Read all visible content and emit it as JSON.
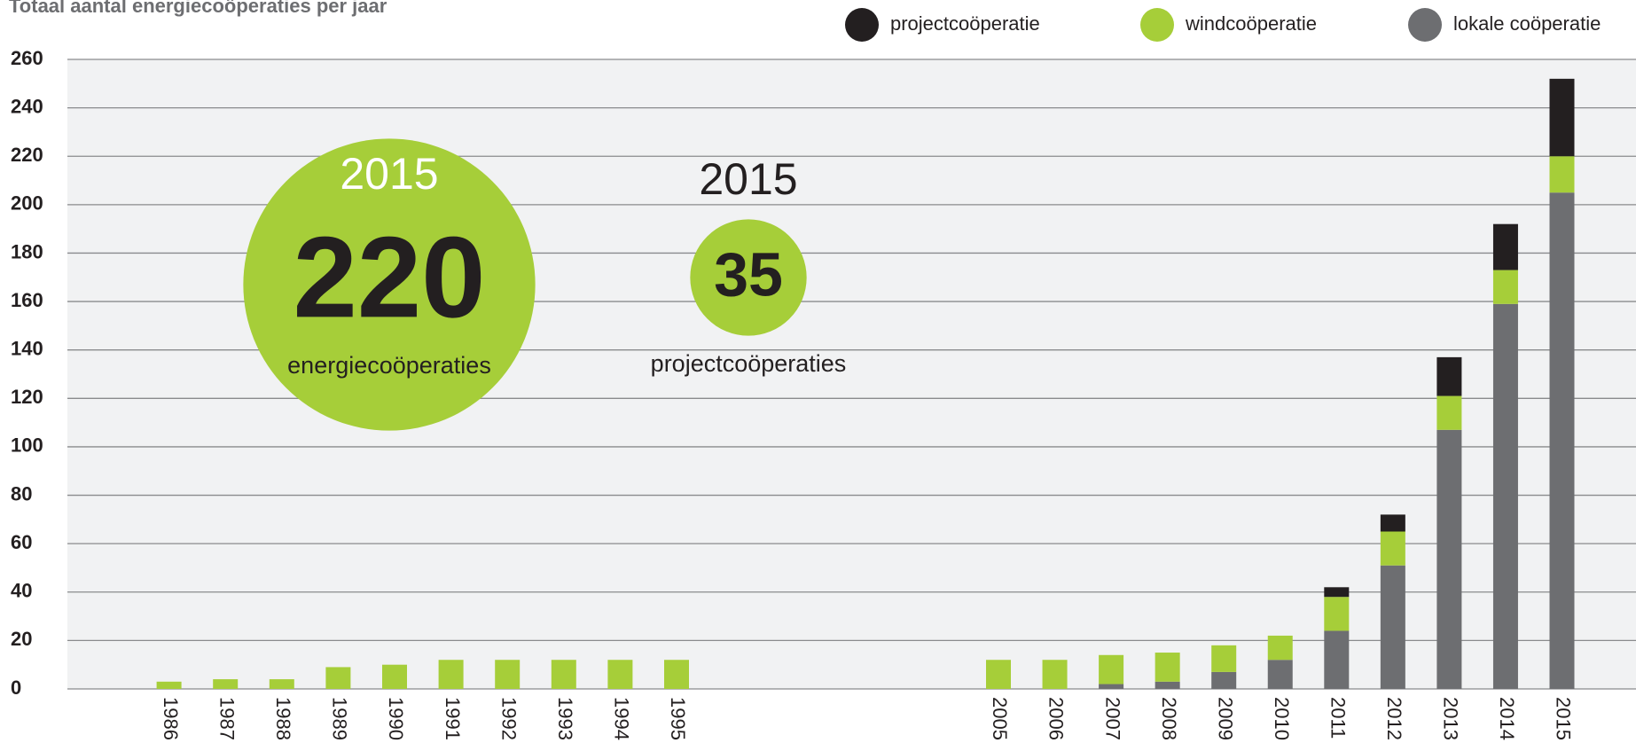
{
  "chart_data": {
    "type": "stacked-bar",
    "title": "Totaal aantal energiecoöperaties per jaar",
    "categories": [
      "1986",
      "1987",
      "1988",
      "1989",
      "1990",
      "1991",
      "1992",
      "1993",
      "1994",
      "1995",
      "2005",
      "2006",
      "2007",
      "2008",
      "2009",
      "2010",
      "2011",
      "2012",
      "2013",
      "2014",
      "2015"
    ],
    "series": [
      {
        "name": "projectcoöperatie",
        "color": "#231f20",
        "values": [
          0,
          0,
          0,
          0,
          0,
          0,
          0,
          0,
          0,
          0,
          0,
          0,
          0,
          0,
          0,
          0,
          4,
          7,
          16,
          19,
          32
        ]
      },
      {
        "name": "windcoöperatie",
        "color": "#a6ce39",
        "values": [
          3,
          4,
          4,
          9,
          10,
          12,
          12,
          12,
          12,
          12,
          12,
          12,
          12,
          12,
          11,
          10,
          14,
          14,
          14,
          14,
          15
        ]
      },
      {
        "name": "lokale coöperatie",
        "color": "#6d6e71",
        "values": [
          0,
          0,
          0,
          0,
          0,
          0,
          0,
          0,
          0,
          0,
          0,
          0,
          2,
          3,
          7,
          12,
          24,
          51,
          107,
          159,
          205
        ]
      }
    ],
    "ylim": [
      0,
      260
    ],
    "yticks": [
      0,
      20,
      40,
      60,
      80,
      100,
      120,
      140,
      160,
      180,
      200,
      220,
      240,
      260
    ],
    "grid": true,
    "annotations": [
      {
        "year": "2015",
        "value": 220,
        "label": "energiecoöperaties",
        "color": "#a6ce39"
      },
      {
        "year": "2015",
        "value": 35,
        "label": "projectcoöperaties",
        "color": "#a6ce39"
      }
    ]
  }
}
